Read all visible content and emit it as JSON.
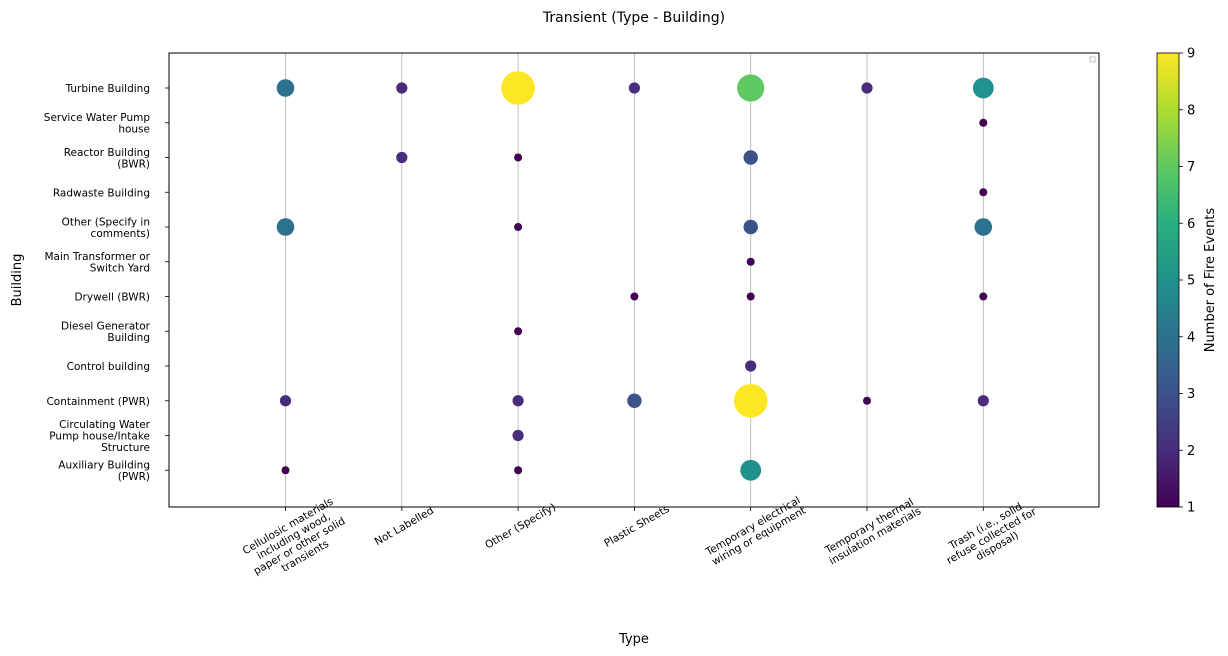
{
  "chart_data": {
    "type": "scatter",
    "title": "Transient (Type - Building)",
    "xlabel": "Type",
    "ylabel": "Building",
    "colorbar_label": "Number of Fire Events",
    "colorbar_range": [
      1,
      9
    ],
    "colorbar_ticks": [
      "1",
      "2",
      "3",
      "4",
      "5",
      "6",
      "7",
      "8",
      "9"
    ],
    "colormap": "viridis",
    "grid": "vertical",
    "x_categories": [
      [
        "Cellulosic materials",
        "including wood,",
        "paper or other solid",
        "transients"
      ],
      [
        "Not Labelled"
      ],
      [
        "Other (Specify)"
      ],
      [
        "Plastic Sheets"
      ],
      [
        "Temporary electrical",
        "wiring or equipment"
      ],
      [
        "Temporary thermal",
        "insulation materials"
      ],
      [
        "Trash (i.e., solid",
        "refuse collected for",
        "disposal)"
      ]
    ],
    "y_categories": [
      [
        "Turbine Building"
      ],
      [
        "Service Water Pump",
        "house"
      ],
      [
        "Reactor Building",
        "(BWR)"
      ],
      [
        "Radwaste Building"
      ],
      [
        "Other (Specify in",
        "comments)"
      ],
      [
        "Main Transformer or",
        "Switch Yard"
      ],
      [
        "Drywell (BWR)"
      ],
      [
        "Diesel Generator",
        "Building"
      ],
      [
        "Control building"
      ],
      [
        "Containment (PWR)"
      ],
      [
        "Circulating Water",
        "Pump house/Intake",
        "Structure"
      ],
      [
        "Auxiliary Building",
        "(PWR)"
      ]
    ],
    "points": [
      {
        "x": 0,
        "y": 0,
        "count": 4
      },
      {
        "x": 1,
        "y": 0,
        "count": 2
      },
      {
        "x": 2,
        "y": 0,
        "count": 9
      },
      {
        "x": 3,
        "y": 0,
        "count": 2
      },
      {
        "x": 4,
        "y": 0,
        "count": 7
      },
      {
        "x": 5,
        "y": 0,
        "count": 2
      },
      {
        "x": 6,
        "y": 0,
        "count": 5
      },
      {
        "x": 6,
        "y": 1,
        "count": 1
      },
      {
        "x": 1,
        "y": 2,
        "count": 2
      },
      {
        "x": 2,
        "y": 2,
        "count": 1
      },
      {
        "x": 4,
        "y": 2,
        "count": 3
      },
      {
        "x": 6,
        "y": 3,
        "count": 1
      },
      {
        "x": 0,
        "y": 4,
        "count": 4
      },
      {
        "x": 2,
        "y": 4,
        "count": 1
      },
      {
        "x": 4,
        "y": 4,
        "count": 3
      },
      {
        "x": 6,
        "y": 4,
        "count": 4
      },
      {
        "x": 4,
        "y": 5,
        "count": 1
      },
      {
        "x": 3,
        "y": 6,
        "count": 1
      },
      {
        "x": 4,
        "y": 6,
        "count": 1
      },
      {
        "x": 6,
        "y": 6,
        "count": 1
      },
      {
        "x": 2,
        "y": 7,
        "count": 1
      },
      {
        "x": 4,
        "y": 8,
        "count": 2
      },
      {
        "x": 0,
        "y": 9,
        "count": 2
      },
      {
        "x": 2,
        "y": 9,
        "count": 2
      },
      {
        "x": 3,
        "y": 9,
        "count": 3
      },
      {
        "x": 4,
        "y": 9,
        "count": 9
      },
      {
        "x": 5,
        "y": 9,
        "count": 1
      },
      {
        "x": 6,
        "y": 9,
        "count": 2
      },
      {
        "x": 2,
        "y": 10,
        "count": 2
      },
      {
        "x": 0,
        "y": 11,
        "count": 1
      },
      {
        "x": 2,
        "y": 11,
        "count": 1
      },
      {
        "x": 4,
        "y": 11,
        "count": 5
      }
    ]
  }
}
